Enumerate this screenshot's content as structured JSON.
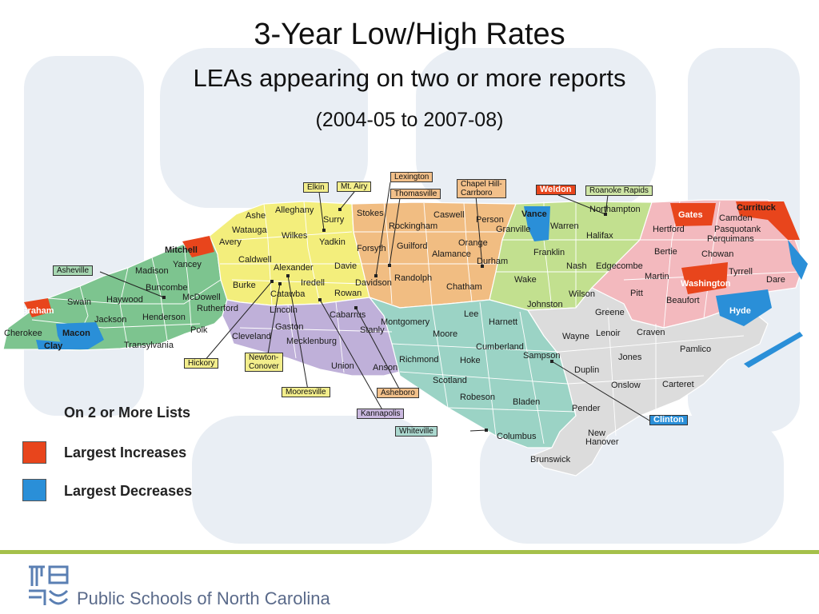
{
  "title": "3-Year Low/High Rates",
  "subtitle": "LEAs appearing on two or more reports",
  "date_range": "(2004-05 to 2007-08)",
  "legend": {
    "title": "On 2 or More Lists",
    "increase_label": "Largest Increases",
    "decrease_label": "Largest Decreases",
    "increase_color": "#e8451c",
    "decrease_color": "#2a8fd8"
  },
  "footer": {
    "org": "Public Schools of North Carolina"
  },
  "city_labels": {
    "elkin": "Elkin",
    "mt_airy": "Mt. Airy",
    "lexington": "Lexington",
    "thomasville": "Thomasville",
    "chapel_hill_1": "Chapel Hill-",
    "chapel_hill_2": "Carrboro",
    "weldon": "Weldon",
    "roanoke_rapids": "Roanoke Rapids",
    "asheville": "Asheville",
    "hickory": "Hickory",
    "newton_1": "Newton-",
    "newton_2": "Conover",
    "mooresville": "Mooresville",
    "asheboro": "Asheboro",
    "kannapolis": "Kannapolis",
    "whiteville": "Whiteville",
    "clinton": "Clinton"
  },
  "counties": {
    "graham": "Graham",
    "cherokee": "Cherokee",
    "macon": "Macon",
    "clay": "Clay",
    "swain": "Swain",
    "haywood": "Haywood",
    "jackson": "Jackson",
    "madison": "Madison",
    "mitchell": "Mitchell",
    "yancey": "Yancey",
    "buncombe": "Buncombe",
    "mcdowell": "McDowell",
    "henderson": "Henderson",
    "transylvania": "Transylvania",
    "polk": "Polk",
    "rutherford": "Rutherford",
    "ashe": "Ashe",
    "alleghany": "Alleghany",
    "surry": "Surry",
    "watauga": "Watauga",
    "wilkes": "Wilkes",
    "yadkin": "Yadkin",
    "avery": "Avery",
    "caldwell": "Caldwell",
    "alexander": "Alexander",
    "davie": "Davie",
    "burke": "Burke",
    "iredell": "Iredell",
    "catawba": "Catawba",
    "rowan": "Rowan",
    "lincoln": "Lincoln",
    "gaston": "Gaston",
    "cleveland": "Cleveland",
    "mecklenburg": "Mecklenburg",
    "cabarrus": "Cabarrus",
    "stanly": "Stanly",
    "union": "Union",
    "anson": "Anson",
    "stokes": "Stokes",
    "rockingham": "Rockingham",
    "caswell": "Caswell",
    "person": "Person",
    "forsyth": "Forsyth",
    "guilford": "Guilford",
    "alamance": "Alamance",
    "orange": "Orange",
    "durham": "Durham",
    "davidson": "Davidson",
    "randolph": "Randolph",
    "chatham": "Chatham",
    "vance": "Vance",
    "granville": "Granville",
    "warren": "Warren",
    "halifax": "Halifax",
    "northampton": "Northampton",
    "franklin": "Franklin",
    "nash": "Nash",
    "edgecombe": "Edgecombe",
    "wake": "Wake",
    "wilson": "Wilson",
    "johnston": "Johnston",
    "montgomery": "Montgomery",
    "lee": "Lee",
    "harnett": "Harnett",
    "moore": "Moore",
    "cumberland": "Cumberland",
    "richmond": "Richmond",
    "hoke": "Hoke",
    "scotland": "Scotland",
    "robeson": "Robeson",
    "bladen": "Bladen",
    "columbus": "Columbus",
    "brunswick": "Brunswick",
    "pender": "Pender",
    "new_hanover_1": "New",
    "new_hanover_2": "Hanover",
    "onslow": "Onslow",
    "duplin": "Duplin",
    "sampson": "Sampson",
    "wayne": "Wayne",
    "lenoir": "Lenoir",
    "greene": "Greene",
    "jones": "Jones",
    "craven": "Craven",
    "carteret": "Carteret",
    "pamlico": "Pamlico",
    "pitt": "Pitt",
    "beaufort": "Beaufort",
    "martin": "Martin",
    "bertie": "Bertie",
    "hertford": "Hertford",
    "gates": "Gates",
    "camden": "Camden",
    "currituck": "Currituck",
    "pasquotank": "Pasquotank",
    "perquimans": "Perquimans",
    "chowan": "Chowan",
    "washington": "Washington",
    "tyrrell": "Tyrrell",
    "dare": "Dare",
    "hyde": "Hyde"
  }
}
